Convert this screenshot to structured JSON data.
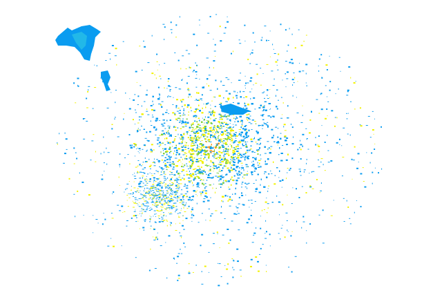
{
  "image": {
    "kind": "radar-reflectivity-echo",
    "background_color": "#ffffff",
    "palette": {
      "weak": "#0a9cf0",
      "light": "#22b8e8",
      "moderate": "#7fd13a",
      "strong": "#f2f200",
      "core": "#ff9a1a"
    }
  }
}
